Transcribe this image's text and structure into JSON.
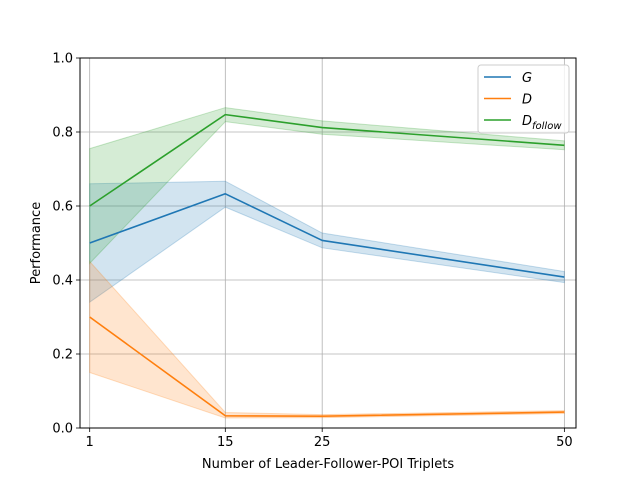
{
  "chart_data": {
    "type": "line",
    "title": "",
    "xlabel": "Number of Leader-Follower-POI Triplets",
    "ylabel": "Performance",
    "x": [
      1,
      15,
      25,
      50
    ],
    "xticks": [
      "1",
      "15",
      "25",
      "50"
    ],
    "xlim": [
      0.0,
      51.2
    ],
    "ylim": [
      0.0,
      1.0
    ],
    "yticks": [
      "0.0",
      "0.2",
      "0.4",
      "0.6",
      "0.8",
      "1.0"
    ],
    "grid": true,
    "legend_position": "top-right",
    "series": [
      {
        "name": "G",
        "name_main": "G",
        "name_sub": "",
        "color": "#1f77b4",
        "values": [
          0.5,
          0.633,
          0.507,
          0.408
        ],
        "lower": [
          0.34,
          0.597,
          0.487,
          0.393
        ],
        "upper": [
          0.66,
          0.667,
          0.527,
          0.423
        ]
      },
      {
        "name": "D",
        "name_main": "D",
        "name_sub": "",
        "color": "#ff7f0e",
        "values": [
          0.3,
          0.033,
          0.032,
          0.043
        ],
        "lower": [
          0.15,
          0.027,
          0.028,
          0.039
        ],
        "upper": [
          0.45,
          0.042,
          0.036,
          0.047
        ]
      },
      {
        "name": "Dfollow",
        "name_main": "D",
        "name_sub": "follow",
        "color": "#2ca02c",
        "values": [
          0.6,
          0.847,
          0.812,
          0.764
        ],
        "lower": [
          0.445,
          0.828,
          0.794,
          0.752
        ],
        "upper": [
          0.755,
          0.866,
          0.83,
          0.776
        ]
      }
    ]
  }
}
